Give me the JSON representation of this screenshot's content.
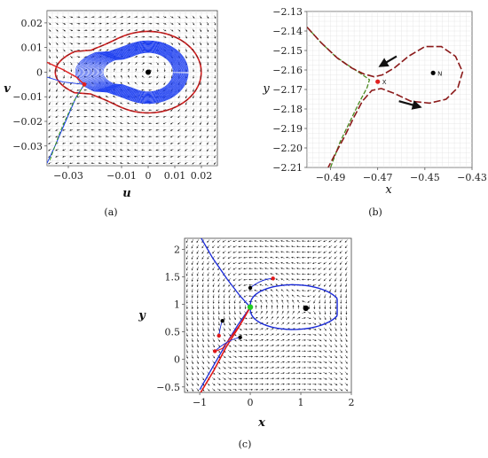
{
  "panels": {
    "a": {
      "caption": "(a)"
    },
    "b": {
      "caption": "(b)"
    },
    "c": {
      "caption": "(c)"
    }
  },
  "chart_data": [
    {
      "id": "a",
      "type": "line",
      "xlabel": "u",
      "ylabel": "v",
      "xlim": [
        -0.038,
        0.026
      ],
      "ylim": [
        -0.038,
        0.025
      ],
      "xticks": [
        -0.03,
        -0.01,
        0,
        0.01,
        0.02
      ],
      "xtick_labels": [
        "−0.03",
        "−0.01",
        "0",
        "0.01",
        "0.02"
      ],
      "yticks": [
        0.02,
        0.01,
        0,
        -0.01,
        -0.02,
        -0.03
      ],
      "ytick_labels": [
        "0.02",
        "0.01",
        "0",
        "−0.01",
        "−0.02",
        "−0.03"
      ],
      "grid": true,
      "colors": {
        "trajectory": "#1a3cf0",
        "separatrix": "#e02020",
        "dashed": "#8b1a1a",
        "green": "#3a9a1a",
        "field": "#111111"
      },
      "points": {
        "center": [
          0,
          0
        ],
        "saddle": [
          -0.024,
          -0.005
        ]
      }
    },
    {
      "id": "b",
      "type": "line",
      "xlabel": "x",
      "ylabel": "y",
      "xlim": [
        -0.5,
        -0.43
      ],
      "ylim": [
        -2.21,
        -2.13
      ],
      "xticks": [
        -0.49,
        -0.47,
        -0.45,
        -0.43
      ],
      "xtick_labels": [
        "−0.49",
        "−0.47",
        "−0.45",
        "−0.43"
      ],
      "yticks": [
        -2.13,
        -2.14,
        -2.15,
        -2.16,
        -2.17,
        -2.18,
        -2.19,
        -2.2,
        -2.21
      ],
      "ytick_labels": [
        "−2.13",
        "−2.14",
        "−2.15",
        "−2.16",
        "−2.17",
        "−2.18",
        "−2.19",
        "−2.20",
        "−2.21"
      ],
      "grid": true,
      "annotations": [
        {
          "label": "X",
          "x": -0.47,
          "y": -2.166,
          "color": "#e02020"
        },
        {
          "label": "N",
          "x": -0.4465,
          "y": -2.1615,
          "color": "#000000"
        }
      ],
      "colors": {
        "dashed": "#8b1a1a",
        "green": "#4a8a20",
        "arrow": "#111111"
      }
    },
    {
      "id": "c",
      "type": "line",
      "xlabel": "x",
      "ylabel": "y",
      "xlim": [
        -1.3,
        2.0
      ],
      "ylim": [
        -0.6,
        2.2
      ],
      "xticks": [
        -1,
        0,
        1,
        2
      ],
      "xtick_labels": [
        "−1",
        "0",
        "1",
        "2"
      ],
      "yticks": [
        2,
        1.5,
        1,
        0.5,
        0,
        -0.5
      ],
      "ytick_labels": [
        "2",
        "1.5",
        "1",
        "0.5",
        "0",
        "−0.5"
      ],
      "points": {
        "center": [
          1.1,
          0.93
        ],
        "saddle": [
          0,
          0.95
        ]
      },
      "samples": [
        {
          "start": [
            0.45,
            1.47
          ],
          "end": [
            0.0,
            1.3
          ]
        },
        {
          "start": [
            -0.62,
            0.43
          ],
          "end": [
            -0.55,
            0.7
          ]
        },
        {
          "start": [
            -0.7,
            0.15
          ],
          "end": [
            -0.2,
            0.4
          ]
        }
      ],
      "colors": {
        "blue": "#1a2ad8",
        "red": "#e01818",
        "green": "#22cc22",
        "field": "#222222"
      }
    }
  ]
}
